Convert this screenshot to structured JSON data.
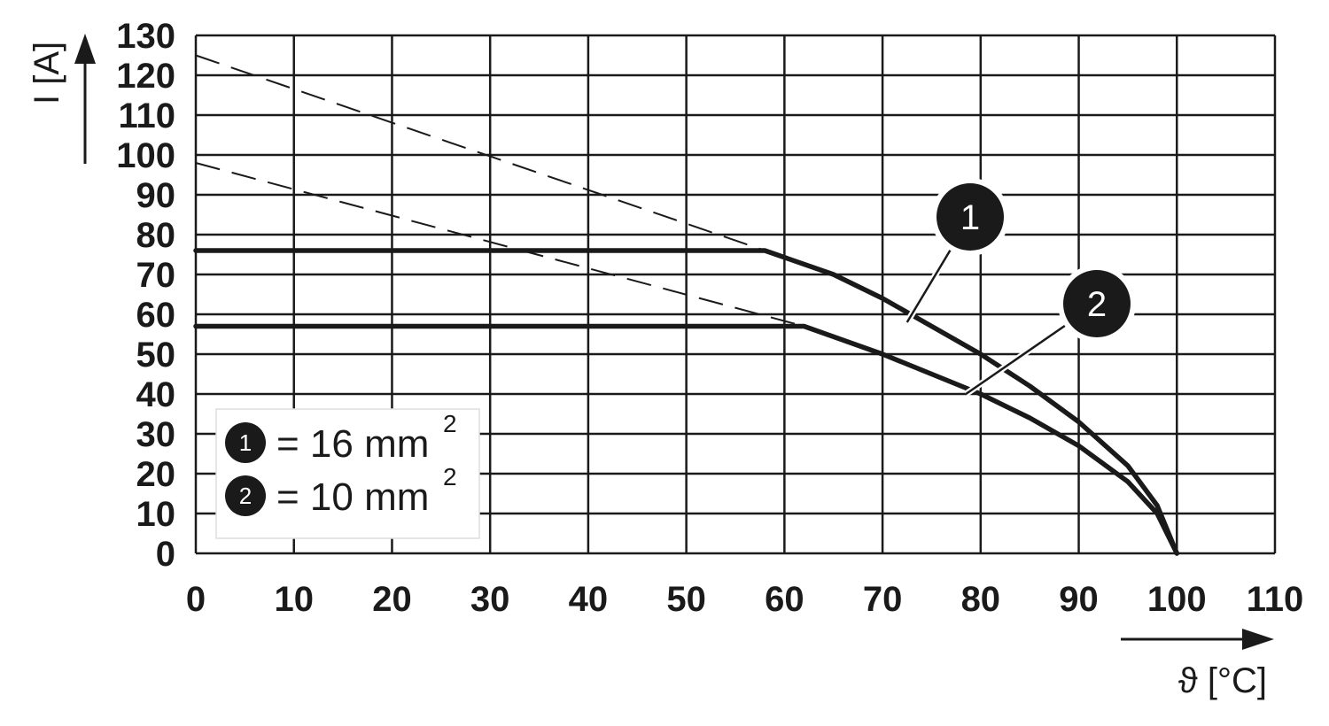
{
  "chart_data": {
    "type": "line",
    "xlabel": "ϑ [°C]",
    "ylabel": "I [A]",
    "xlim": [
      0,
      110
    ],
    "ylim": [
      0,
      130
    ],
    "x_ticks": [
      "0",
      "10",
      "20",
      "30",
      "40",
      "50",
      "60",
      "70",
      "80",
      "90",
      "100",
      "110"
    ],
    "y_ticks": [
      "0",
      "10",
      "20",
      "30",
      "40",
      "50",
      "60",
      "70",
      "80",
      "90",
      "100",
      "110",
      "120",
      "130"
    ],
    "grid": true,
    "series": [
      {
        "marker": "1",
        "x": [
          0,
          58,
          65,
          70,
          75,
          80,
          85,
          90,
          95,
          98,
          100
        ],
        "y": [
          76,
          76,
          70,
          64,
          57,
          50,
          42,
          33,
          22,
          12,
          0
        ],
        "dashed_extension": {
          "x": [
            0,
            58
          ],
          "y": [
            125,
            76
          ]
        }
      },
      {
        "marker": "2",
        "x": [
          0,
          62,
          70,
          75,
          80,
          85,
          90,
          95,
          98,
          100
        ],
        "y": [
          57,
          57,
          50,
          45,
          40,
          34,
          27,
          18,
          10,
          0
        ],
        "dashed_extension": {
          "x": [
            0,
            62
          ],
          "y": [
            98,
            57
          ]
        }
      }
    ],
    "legend": {
      "placement": "bottom-left",
      "entries": [
        {
          "marker": "1",
          "text": "= 16 mm",
          "sup": "2"
        },
        {
          "marker": "2",
          "text": "= 10 mm",
          "sup": "2"
        }
      ]
    },
    "callouts": [
      {
        "marker": "1",
        "x": 72.5,
        "y": 58
      },
      {
        "marker": "2",
        "x": 78.5,
        "y": 40
      }
    ]
  }
}
